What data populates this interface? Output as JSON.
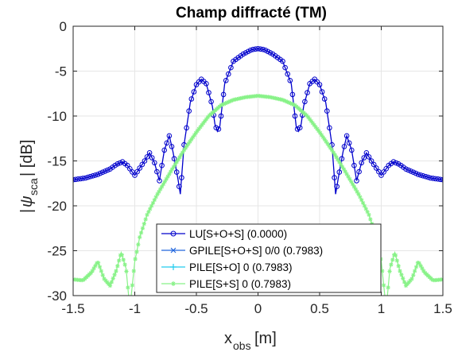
{
  "chart_data": {
    "type": "line",
    "title": "Champ diffracté (TM)",
    "xlabel": "x_obs [m]",
    "ylabel": "|ψ_sca| [dB]",
    "xlim": [
      -1.5,
      1.5
    ],
    "ylim": [
      -30,
      0
    ],
    "xticks": [
      -1.5,
      -1,
      -0.5,
      0,
      0.5,
      1,
      1.5
    ],
    "xtick_labels": [
      "-1.5",
      "-1",
      "-0.5",
      "0",
      "0.5",
      "1",
      "1.5"
    ],
    "yticks": [
      0,
      -5,
      -10,
      -15,
      -20,
      -25,
      -30
    ],
    "ytick_labels": [
      "0",
      "-5",
      "-10",
      "-15",
      "-20",
      "-25",
      "-30"
    ],
    "grid": true,
    "legend_position": "bottom-center",
    "series": [
      {
        "name": "LU[S+O+S] (0.0000)",
        "color": "#0000cc",
        "marker": "circle",
        "points": [
          [
            -1.5,
            -17.1
          ],
          [
            -1.4,
            -16.9
          ],
          [
            -1.3,
            -16.5
          ],
          [
            -1.2,
            -15.9
          ],
          [
            -1.15,
            -15.4
          ],
          [
            -1.1,
            -15.1
          ],
          [
            -1.06,
            -15.5
          ],
          [
            -1.0,
            -16.6
          ],
          [
            -0.97,
            -16.0
          ],
          [
            -0.92,
            -15.0
          ],
          [
            -0.88,
            -14.1
          ],
          [
            -0.84,
            -15.2
          ],
          [
            -0.8,
            -17.2
          ],
          [
            -0.76,
            -13.8
          ],
          [
            -0.72,
            -12.2
          ],
          [
            -0.69,
            -14.0
          ],
          [
            -0.65,
            -17.0
          ],
          [
            -0.63,
            -18.7
          ],
          [
            -0.6,
            -13.2
          ],
          [
            -0.55,
            -8.5
          ],
          [
            -0.5,
            -6.5
          ],
          [
            -0.46,
            -5.9
          ],
          [
            -0.42,
            -6.4
          ],
          [
            -0.37,
            -8.9
          ],
          [
            -0.35,
            -10.9
          ],
          [
            -0.33,
            -11.7
          ],
          [
            -0.31,
            -11.2
          ],
          [
            -0.27,
            -6.4
          ],
          [
            -0.2,
            -3.9
          ],
          [
            -0.12,
            -3.1
          ],
          [
            -0.05,
            -2.6
          ],
          [
            0.0,
            -2.5
          ],
          [
            0.05,
            -2.6
          ],
          [
            0.12,
            -3.1
          ],
          [
            0.2,
            -3.9
          ],
          [
            0.27,
            -6.4
          ],
          [
            0.31,
            -11.2
          ],
          [
            0.33,
            -11.7
          ],
          [
            0.35,
            -10.9
          ],
          [
            0.37,
            -8.9
          ],
          [
            0.42,
            -6.4
          ],
          [
            0.46,
            -5.9
          ],
          [
            0.5,
            -6.5
          ],
          [
            0.55,
            -8.5
          ],
          [
            0.6,
            -13.2
          ],
          [
            0.63,
            -18.7
          ],
          [
            0.65,
            -17.0
          ],
          [
            0.69,
            -14.0
          ],
          [
            0.72,
            -12.2
          ],
          [
            0.76,
            -13.8
          ],
          [
            0.8,
            -17.2
          ],
          [
            0.84,
            -15.2
          ],
          [
            0.88,
            -14.1
          ],
          [
            0.92,
            -15.0
          ],
          [
            0.97,
            -16.0
          ],
          [
            1.0,
            -16.6
          ],
          [
            1.06,
            -15.5
          ],
          [
            1.1,
            -15.1
          ],
          [
            1.15,
            -15.4
          ],
          [
            1.2,
            -15.9
          ],
          [
            1.3,
            -16.5
          ],
          [
            1.4,
            -16.9
          ],
          [
            1.5,
            -17.1
          ]
        ]
      },
      {
        "name": "GPILE[S+O+S] 0/0 (0.7983)",
        "color": "#2266dd",
        "marker": "x",
        "points": []
      },
      {
        "name": "PILE[S+O] 0 (0.7983)",
        "color": "#22ccee",
        "marker": "plus",
        "points": []
      },
      {
        "name": "PILE[S+S] 0 (0.7983)",
        "color": "#88f288",
        "marker": "star",
        "points": [
          [
            -1.5,
            -28.2
          ],
          [
            -1.42,
            -28.3
          ],
          [
            -1.35,
            -27.4
          ],
          [
            -1.3,
            -26.2
          ],
          [
            -1.25,
            -28.1
          ],
          [
            -1.2,
            -28.9
          ],
          [
            -1.15,
            -27.2
          ],
          [
            -1.11,
            -25.2
          ],
          [
            -1.07,
            -27.0
          ],
          [
            -1.04,
            -31.5
          ],
          [
            -1.0,
            -26.2
          ],
          [
            -0.96,
            -23.5
          ],
          [
            -0.9,
            -21.0
          ],
          [
            -0.82,
            -18.8
          ],
          [
            -0.7,
            -16.0
          ],
          [
            -0.6,
            -13.8
          ],
          [
            -0.5,
            -11.8
          ],
          [
            -0.4,
            -10.0
          ],
          [
            -0.3,
            -8.8
          ],
          [
            -0.2,
            -8.2
          ],
          [
            -0.1,
            -7.9
          ],
          [
            0.0,
            -7.75
          ],
          [
            0.1,
            -7.9
          ],
          [
            0.2,
            -8.2
          ],
          [
            0.3,
            -8.8
          ],
          [
            0.4,
            -10.0
          ],
          [
            0.5,
            -11.8
          ],
          [
            0.6,
            -13.8
          ],
          [
            0.7,
            -16.0
          ],
          [
            0.82,
            -18.8
          ],
          [
            0.9,
            -21.0
          ],
          [
            0.96,
            -23.5
          ],
          [
            1.0,
            -26.2
          ],
          [
            1.04,
            -31.5
          ],
          [
            1.07,
            -27.0
          ],
          [
            1.11,
            -25.2
          ],
          [
            1.15,
            -27.2
          ],
          [
            1.2,
            -28.9
          ],
          [
            1.25,
            -28.1
          ],
          [
            1.3,
            -26.2
          ],
          [
            1.35,
            -27.4
          ],
          [
            1.42,
            -28.3
          ],
          [
            1.5,
            -28.2
          ]
        ]
      }
    ]
  }
}
